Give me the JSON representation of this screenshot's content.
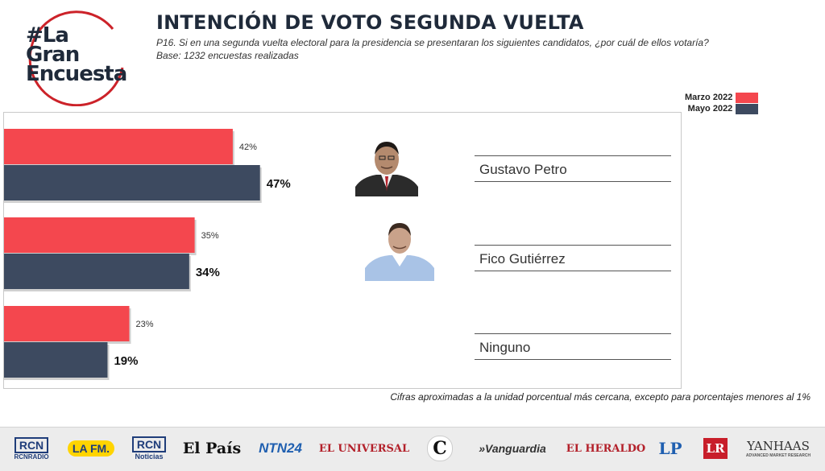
{
  "logo": {
    "line1": "#La",
    "line2": "Gran",
    "line3": "Encuesta"
  },
  "header": {
    "title": "INTENCIÓN DE VOTO SEGUNDA VUELTA",
    "question": "P16. Si en una segunda vuelta electoral para la presidencia se presentaran los siguientes candidatos, ¿por cuál de ellos votaría?",
    "base": "Base: 1232 encuestas realizadas"
  },
  "colors": {
    "marzo": "#f4474e",
    "mayo": "#3d4a60"
  },
  "chart_data": {
    "type": "bar",
    "orientation": "horizontal",
    "categories": [
      "Gustavo Petro",
      "Fico Gutiérrez",
      "Ninguno"
    ],
    "series": [
      {
        "name": "Marzo 2022",
        "values": [
          42,
          35,
          23
        ],
        "labels": [
          "42%",
          "35%",
          "23%"
        ],
        "color": "#f4474e"
      },
      {
        "name": "Mayo 2022",
        "values": [
          47,
          34,
          19
        ],
        "labels": [
          "47%",
          "34%",
          "19%"
        ],
        "color": "#3d4a60"
      }
    ],
    "xlim": [
      0,
      100
    ],
    "legend_position": "top-right",
    "grid": false
  },
  "note": "Cifras aproximadas a la unidad porcentual más cercana, excepto para porcentajes menores al 1%",
  "footer": {
    "items": [
      {
        "label": "RCN",
        "sub": "RCNRADIO"
      },
      {
        "label": "LA FM."
      },
      {
        "label": "RCN",
        "sub": "Noticias"
      },
      {
        "label": "El País"
      },
      {
        "label": "NTN24"
      },
      {
        "label": "EL UNIVERSAL"
      },
      {
        "label": "C"
      },
      {
        "label": "»Vanguardia"
      },
      {
        "label": "EL HERALDO"
      },
      {
        "label": "LP"
      },
      {
        "label": "LR"
      },
      {
        "label": "YANHAAS",
        "sub": "ADVANCED MARKET RESEARCH"
      }
    ]
  }
}
